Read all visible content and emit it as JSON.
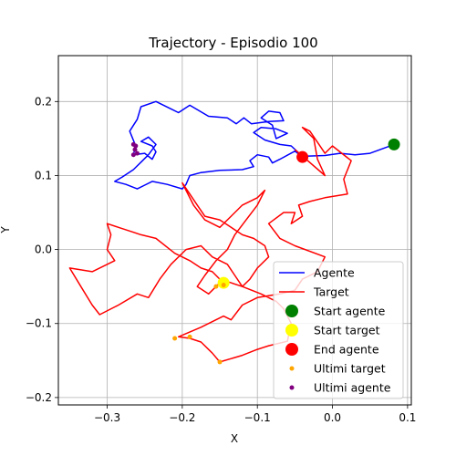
{
  "chart_data": {
    "type": "line",
    "title": "Trajectory - Episodio 100",
    "xlabel": "X",
    "ylabel": "Y",
    "xlim": [
      -0.365,
      0.105
    ],
    "ylim": [
      -0.21,
      0.262
    ],
    "xticks": [
      -0.3,
      -0.2,
      -0.1,
      0.0,
      0.1
    ],
    "xtick_labels": [
      "−0.3",
      "−0.2",
      "−0.1",
      "0.0",
      "0.1"
    ],
    "yticks": [
      -0.2,
      -0.1,
      0.0,
      0.1,
      0.2
    ],
    "ytick_labels": [
      "−0.2",
      "−0.1",
      "0.0",
      "0.1",
      "0.2"
    ],
    "grid": true,
    "legend_position": "lower-right",
    "series": [
      {
        "name": "Agente",
        "kind": "line",
        "color": "#0000ff",
        "points": [
          [
            0.082,
            0.142
          ],
          [
            0.05,
            0.13
          ],
          [
            0.03,
            0.128
          ],
          [
            0.01,
            0.13
          ],
          [
            -0.01,
            0.127
          ],
          [
            -0.04,
            0.126
          ],
          [
            -0.055,
            0.14
          ],
          [
            -0.07,
            0.142
          ],
          [
            -0.09,
            0.148
          ],
          [
            -0.105,
            0.158
          ],
          [
            -0.095,
            0.165
          ],
          [
            -0.075,
            0.163
          ],
          [
            -0.06,
            0.157
          ],
          [
            -0.075,
            0.15
          ],
          [
            -0.08,
            0.168
          ],
          [
            -0.095,
            0.178
          ],
          [
            -0.085,
            0.187
          ],
          [
            -0.07,
            0.185
          ],
          [
            -0.065,
            0.174
          ],
          [
            -0.085,
            0.173
          ],
          [
            -0.108,
            0.17
          ],
          [
            -0.118,
            0.178
          ],
          [
            -0.128,
            0.17
          ],
          [
            -0.14,
            0.178
          ],
          [
            -0.165,
            0.18
          ],
          [
            -0.19,
            0.195
          ],
          [
            -0.205,
            0.185
          ],
          [
            -0.215,
            0.19
          ],
          [
            -0.235,
            0.2
          ],
          [
            -0.255,
            0.193
          ],
          [
            -0.26,
            0.176
          ],
          [
            -0.27,
            0.16
          ],
          [
            -0.262,
            0.14
          ],
          [
            -0.265,
            0.128
          ],
          [
            -0.25,
            0.13
          ],
          [
            -0.24,
            0.122
          ],
          [
            -0.235,
            0.132
          ],
          [
            -0.24,
            0.14
          ],
          [
            -0.255,
            0.146
          ],
          [
            -0.245,
            0.152
          ],
          [
            -0.235,
            0.142
          ],
          [
            -0.245,
            0.128
          ],
          [
            -0.255,
            0.118
          ],
          [
            -0.265,
            0.108
          ],
          [
            -0.28,
            0.098
          ],
          [
            -0.29,
            0.092
          ],
          [
            -0.275,
            0.088
          ],
          [
            -0.26,
            0.082
          ],
          [
            -0.25,
            0.087
          ],
          [
            -0.24,
            0.092
          ],
          [
            -0.22,
            0.088
          ],
          [
            -0.2,
            0.082
          ],
          [
            -0.195,
            0.088
          ],
          [
            -0.19,
            0.1
          ],
          [
            -0.175,
            0.104
          ],
          [
            -0.15,
            0.107
          ],
          [
            -0.12,
            0.108
          ],
          [
            -0.105,
            0.112
          ],
          [
            -0.11,
            0.12
          ],
          [
            -0.1,
            0.128
          ],
          [
            -0.085,
            0.125
          ],
          [
            -0.08,
            0.117
          ],
          [
            -0.07,
            0.122
          ],
          [
            -0.05,
            0.133
          ],
          [
            -0.04,
            0.125
          ]
        ]
      },
      {
        "name": "Target",
        "kind": "line",
        "color": "#ff0000",
        "points": [
          [
            -0.05,
            0.135
          ],
          [
            -0.01,
            0.1
          ],
          [
            -0.02,
            0.122
          ],
          [
            -0.025,
            0.15
          ],
          [
            -0.04,
            0.165
          ],
          [
            -0.03,
            0.16
          ],
          [
            -0.02,
            0.145
          ],
          [
            -0.01,
            0.13
          ],
          [
            0.0,
            0.14
          ],
          [
            0.025,
            0.12
          ],
          [
            0.015,
            0.095
          ],
          [
            0.02,
            0.075
          ],
          [
            -0.01,
            0.07
          ],
          [
            -0.03,
            0.065
          ],
          [
            -0.045,
            0.06
          ],
          [
            -0.04,
            0.045
          ],
          [
            -0.055,
            0.035
          ],
          [
            -0.05,
            0.05
          ],
          [
            -0.065,
            0.05
          ],
          [
            -0.085,
            0.035
          ],
          [
            -0.07,
            0.015
          ],
          [
            -0.05,
            0.005
          ],
          [
            -0.01,
            -0.01
          ],
          [
            -0.02,
            -0.03
          ],
          [
            -0.04,
            -0.04
          ],
          [
            -0.05,
            -0.055
          ],
          [
            -0.07,
            -0.06
          ],
          [
            -0.1,
            -0.065
          ],
          [
            -0.12,
            -0.075
          ],
          [
            -0.135,
            -0.095
          ],
          [
            -0.145,
            -0.09
          ],
          [
            -0.175,
            -0.105
          ],
          [
            -0.205,
            -0.118
          ],
          [
            -0.19,
            -0.12
          ],
          [
            -0.175,
            -0.125
          ],
          [
            -0.16,
            -0.14
          ],
          [
            -0.15,
            -0.152
          ],
          [
            -0.12,
            -0.143
          ],
          [
            -0.1,
            -0.135
          ],
          [
            -0.085,
            -0.13
          ],
          [
            -0.06,
            -0.124
          ],
          [
            -0.055,
            -0.1
          ],
          [
            -0.065,
            -0.08
          ],
          [
            -0.075,
            -0.07
          ],
          [
            -0.095,
            -0.06
          ],
          [
            -0.12,
            -0.05
          ],
          [
            -0.135,
            -0.045
          ],
          [
            -0.15,
            -0.04
          ],
          [
            -0.16,
            -0.03
          ],
          [
            -0.175,
            -0.025
          ],
          [
            -0.19,
            -0.015
          ],
          [
            -0.21,
            -0.005
          ],
          [
            -0.235,
            0.015
          ],
          [
            -0.255,
            0.02
          ],
          [
            -0.27,
            0.025
          ],
          [
            -0.285,
            0.03
          ],
          [
            -0.3,
            0.035
          ],
          [
            -0.295,
            0.02
          ],
          [
            -0.3,
            0.0
          ],
          [
            -0.29,
            -0.015
          ],
          [
            -0.32,
            -0.03
          ],
          [
            -0.35,
            -0.025
          ],
          [
            -0.335,
            -0.05
          ],
          [
            -0.32,
            -0.075
          ],
          [
            -0.31,
            -0.088
          ],
          [
            -0.285,
            -0.075
          ],
          [
            -0.26,
            -0.06
          ],
          [
            -0.245,
            -0.065
          ],
          [
            -0.23,
            -0.04
          ],
          [
            -0.215,
            -0.02
          ],
          [
            -0.195,
            0.0
          ],
          [
            -0.175,
            0.005
          ],
          [
            -0.16,
            -0.01
          ],
          [
            -0.14,
            -0.02
          ],
          [
            -0.13,
            -0.035
          ],
          [
            -0.12,
            -0.05
          ],
          [
            -0.11,
            -0.04
          ],
          [
            -0.1,
            -0.025
          ],
          [
            -0.085,
            -0.01
          ],
          [
            -0.09,
            0.005
          ],
          [
            -0.105,
            0.015
          ],
          [
            -0.12,
            0.02
          ],
          [
            -0.135,
            0.03
          ],
          [
            -0.15,
            0.04
          ],
          [
            -0.17,
            0.045
          ],
          [
            -0.18,
            0.06
          ],
          [
            -0.19,
            0.075
          ],
          [
            -0.2,
            0.09
          ],
          [
            -0.185,
            0.06
          ],
          [
            -0.17,
            0.04
          ],
          [
            -0.15,
            0.03
          ],
          [
            -0.135,
            0.045
          ],
          [
            -0.12,
            0.06
          ],
          [
            -0.1,
            0.07
          ],
          [
            -0.09,
            0.08
          ],
          [
            -0.1,
            0.06
          ],
          [
            -0.115,
            0.04
          ],
          [
            -0.13,
            0.02
          ],
          [
            -0.14,
            0.0
          ],
          [
            -0.155,
            -0.015
          ],
          [
            -0.17,
            -0.035
          ],
          [
            -0.18,
            -0.05
          ],
          [
            -0.165,
            -0.06
          ],
          [
            -0.15,
            -0.045
          ]
        ]
      }
    ],
    "markers": [
      {
        "name": "Start agente",
        "x": 0.082,
        "y": 0.142,
        "color": "#008000",
        "size": "large"
      },
      {
        "name": "Start target",
        "x": -0.145,
        "y": -0.045,
        "color": "#ffff00",
        "size": "large"
      },
      {
        "name": "End agente",
        "x": -0.04,
        "y": 0.125,
        "color": "#ff0000",
        "size": "large"
      },
      {
        "name": "Ultimi target",
        "color": "#ffa500",
        "size": "small",
        "points": [
          [
            -0.15,
            -0.152
          ],
          [
            -0.19,
            -0.118
          ],
          [
            -0.155,
            -0.05
          ],
          [
            -0.145,
            -0.048
          ],
          [
            -0.21,
            -0.12
          ]
        ]
      },
      {
        "name": "Ultimi agente",
        "color": "#800080",
        "size": "small",
        "points": [
          [
            -0.265,
            0.128
          ],
          [
            -0.262,
            0.14
          ],
          [
            -0.26,
            0.13
          ],
          [
            -0.263,
            0.135
          ],
          [
            -0.265,
            0.142
          ]
        ]
      }
    ],
    "legend": [
      {
        "label": "Agente",
        "kind": "line",
        "color": "#0000ff"
      },
      {
        "label": "Target",
        "kind": "line",
        "color": "#ff0000"
      },
      {
        "label": "Start agente",
        "kind": "big-dot",
        "color": "#008000"
      },
      {
        "label": "Start target",
        "kind": "big-dot",
        "color": "#ffff00"
      },
      {
        "label": "End agente",
        "kind": "big-dot",
        "color": "#ff0000"
      },
      {
        "label": "Ultimi target",
        "kind": "small-dot",
        "color": "#ffa500"
      },
      {
        "label": "Ultimi agente",
        "kind": "small-dot",
        "color": "#800080"
      }
    ]
  }
}
